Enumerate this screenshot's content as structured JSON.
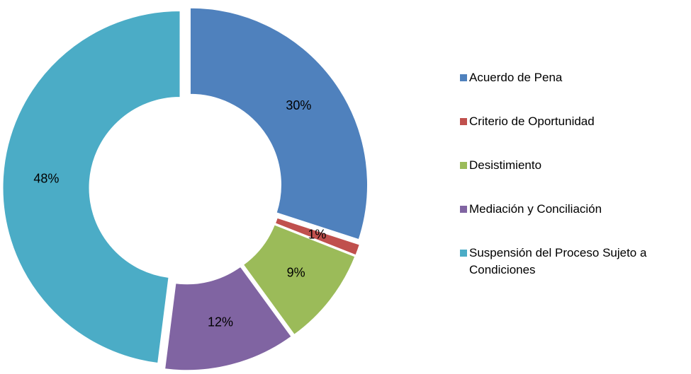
{
  "chart_data": {
    "type": "donut",
    "categories": [
      "Acuerdo de Pena",
      "Criterio de Oportunidad",
      "Desistimiento",
      "Mediación y Conciliación",
      "Suspensión del Proceso Sujeto a Condiciones"
    ],
    "values": [
      30,
      1,
      9,
      12,
      48
    ],
    "value_labels": [
      "30%",
      "1%",
      "9%",
      "12%",
      "48%"
    ],
    "colors": [
      "#4f81bd",
      "#c0504d",
      "#9bbb59",
      "#8064a2",
      "#4bacc6"
    ],
    "legend": "right"
  }
}
